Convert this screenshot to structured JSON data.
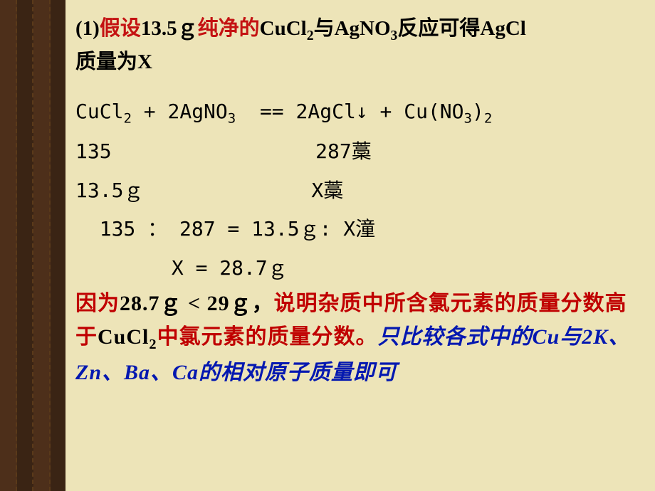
{
  "colors": {
    "page_bg": "#ede4b8",
    "band_light": "#4d2f1a",
    "band_dark": "#3a2414",
    "band_dash": "#5a3a1a",
    "text_black": "#000000",
    "text_red": "#c41212",
    "text_red2": "#c00000",
    "text_blue": "#0418b0"
  },
  "fonts": {
    "body_pt": 29,
    "eq_pt": 28,
    "conclusion_pt": 30
  },
  "line1": {
    "p1": "(1)",
    "p2": "假设",
    "p3": "13.5ｇ",
    "p4": "纯净的",
    "p5": "CuCl",
    "p5s": "2",
    "p6": "与AgNO",
    "p6s": "3",
    "p7": "反应可得AgCl"
  },
  "line2": "质量为X",
  "eq": {
    "r1a": "CuCl",
    "r1as": "2",
    "r1b": " + 2AgNO",
    "r1bs": "3",
    "r1c": "  == 2AgCl↓ + Cu(NO",
    "r1cs": "3",
    "r1d": ")",
    "r1ds": "2",
    "r2": "135                 287藁",
    "r3": "13.5ｇ              X藁",
    "r4": "  135 ： 287 = 13.5ｇ: X潼",
    "r5": "        X = 28.7ｇ"
  },
  "concl": {
    "c1a": "因为",
    "c1b": "28.7ｇ < 29ｇ，",
    "c1c": "说明杂质中所含氯元素的质量分数高于",
    "c1d": "CuCl",
    "c1ds": "2",
    "c1e": "中氯元素的质量分数。",
    "c2": "只比较各式中的Cu与2K、Zn、Ba、Ca的相对原子质量即可"
  }
}
